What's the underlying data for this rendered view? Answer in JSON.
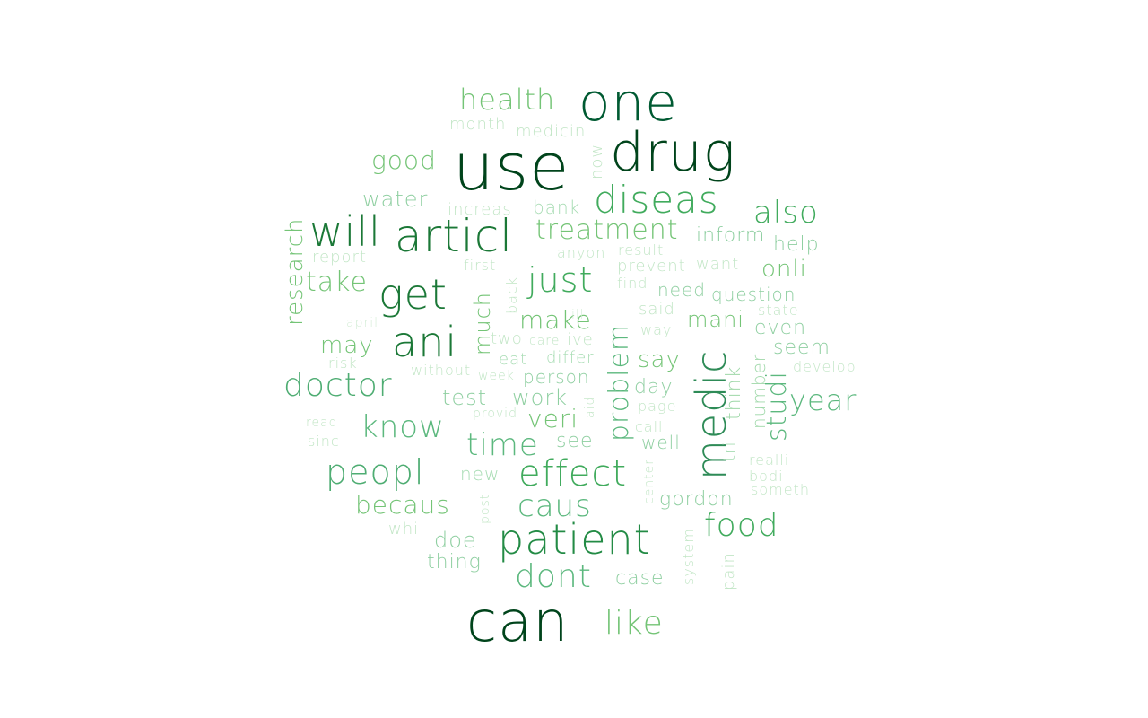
{
  "words": [
    {
      "text": "use",
      "color": "#00441b"
    },
    {
      "text": "can",
      "color": "#00441b"
    },
    {
      "text": "drug",
      "color": "#00441b"
    },
    {
      "text": "one",
      "color": "#005a32"
    },
    {
      "text": "articl",
      "color": "#1b7837"
    },
    {
      "text": "will",
      "color": "#1b7837"
    },
    {
      "text": "get",
      "color": "#1b7837"
    },
    {
      "text": "ani",
      "color": "#1b7837"
    },
    {
      "text": "medic",
      "color": "#2e8b57"
    },
    {
      "text": "patient",
      "color": "#238b45"
    },
    {
      "text": "diseas",
      "color": "#41ab5d"
    },
    {
      "text": "just",
      "color": "#41ab5d"
    },
    {
      "text": "also",
      "color": "#41ab5d"
    },
    {
      "text": "effect",
      "color": "#41ab5d"
    },
    {
      "text": "food",
      "color": "#41ab5d"
    },
    {
      "text": "doctor",
      "color": "#4fad73"
    },
    {
      "text": "peopl",
      "color": "#4fad73"
    },
    {
      "text": "dont",
      "color": "#5cb87e"
    },
    {
      "text": "caus",
      "color": "#5cb87e"
    },
    {
      "text": "know",
      "color": "#5cb87e"
    },
    {
      "text": "time",
      "color": "#5cb87e"
    },
    {
      "text": "problem",
      "color": "#5cb87e"
    },
    {
      "text": "year",
      "color": "#5cb87e"
    },
    {
      "text": "studi",
      "color": "#5cb87e"
    },
    {
      "text": "health",
      "color": "#74c476"
    },
    {
      "text": "treatment",
      "color": "#74c476"
    },
    {
      "text": "like",
      "color": "#74c476"
    },
    {
      "text": "take",
      "color": "#74c476"
    },
    {
      "text": "make",
      "color": "#74c476"
    },
    {
      "text": "good",
      "color": "#74c476"
    },
    {
      "text": "becaus",
      "color": "#74c476"
    },
    {
      "text": "research",
      "color": "#74c476"
    },
    {
      "text": "much",
      "color": "#74c476"
    },
    {
      "text": "onli",
      "color": "#74c476"
    },
    {
      "text": "veri",
      "color": "#74c476"
    },
    {
      "text": "may",
      "color": "#74c476"
    },
    {
      "text": "mani",
      "color": "#74c476"
    },
    {
      "text": "say",
      "color": "#74c476"
    },
    {
      "text": "think",
      "color": "#9fd8a9"
    },
    {
      "text": "number",
      "color": "#9fd8a9"
    },
    {
      "text": "water",
      "color": "#8fcfa1"
    },
    {
      "text": "work",
      "color": "#8fcfa1"
    },
    {
      "text": "doe",
      "color": "#8fcfa1"
    },
    {
      "text": "test",
      "color": "#8fcfa1"
    },
    {
      "text": "see",
      "color": "#8fcfa1"
    },
    {
      "text": "inform",
      "color": "#8fcfa1"
    },
    {
      "text": "help",
      "color": "#8fcfa1"
    },
    {
      "text": "thing",
      "color": "#8fcfa1"
    },
    {
      "text": "case",
      "color": "#8fcfa1"
    },
    {
      "text": "day",
      "color": "#8fcfa1"
    },
    {
      "text": "person",
      "color": "#8fcfa1"
    },
    {
      "text": "even",
      "color": "#8fcfa1"
    },
    {
      "text": "seem",
      "color": "#8fcfa1"
    },
    {
      "text": "question",
      "color": "#8fcfa1"
    },
    {
      "text": "need",
      "color": "#8fcfa1"
    },
    {
      "text": "well",
      "color": "#8fcfa1"
    },
    {
      "text": "gordon",
      "color": "#8fcfa1"
    },
    {
      "text": "new",
      "color": "#a7dcb3"
    },
    {
      "text": "tri",
      "color": "#a7dcb3"
    },
    {
      "text": "differ",
      "color": "#a7dcb3"
    },
    {
      "text": "eat",
      "color": "#a7dcb3"
    },
    {
      "text": "month",
      "color": "#c2e6c6"
    },
    {
      "text": "medicin",
      "color": "#c2e6c6"
    },
    {
      "text": "now",
      "color": "#c2e6c6"
    },
    {
      "text": "increas",
      "color": "#c2e6c6"
    },
    {
      "text": "bank",
      "color": "#a7dcb3"
    },
    {
      "text": "report",
      "color": "#c2e6c6"
    },
    {
      "text": "first",
      "color": "#c2e6c6"
    },
    {
      "text": "anyon",
      "color": "#c2e6c6"
    },
    {
      "text": "result",
      "color": "#c2e6c6"
    },
    {
      "text": "prevent",
      "color": "#c2e6c6"
    },
    {
      "text": "want",
      "color": "#c2e6c6"
    },
    {
      "text": "find",
      "color": "#c2e6c6"
    },
    {
      "text": "back",
      "color": "#c2e6c6"
    },
    {
      "text": "ill",
      "color": "#d4edd6"
    },
    {
      "text": "said",
      "color": "#c2e6c6"
    },
    {
      "text": "state",
      "color": "#c2e6c6"
    },
    {
      "text": "april",
      "color": "#d4edd6"
    },
    {
      "text": "two",
      "color": "#c2e6c6"
    },
    {
      "text": "care",
      "color": "#c2e6c6"
    },
    {
      "text": "ive",
      "color": "#c2e6c6"
    },
    {
      "text": "way",
      "color": "#c2e6c6"
    },
    {
      "text": "risk",
      "color": "#c2e6c6"
    },
    {
      "text": "without",
      "color": "#c2e6c6"
    },
    {
      "text": "week",
      "color": "#c2e6c6"
    },
    {
      "text": "develop",
      "color": "#c2e6c6"
    },
    {
      "text": "read",
      "color": "#c2e6c6"
    },
    {
      "text": "provid",
      "color": "#c2e6c6"
    },
    {
      "text": "aid",
      "color": "#c2e6c6"
    },
    {
      "text": "page",
      "color": "#c2e6c6"
    },
    {
      "text": "call",
      "color": "#c2e6c6"
    },
    {
      "text": "sinc",
      "color": "#c2e6c6"
    },
    {
      "text": "realli",
      "color": "#c2e6c6"
    },
    {
      "text": "bodi",
      "color": "#c2e6c6"
    },
    {
      "text": "someth",
      "color": "#c2e6c6"
    },
    {
      "text": "center",
      "color": "#c2e6c6"
    },
    {
      "text": "post",
      "color": "#c2e6c6"
    },
    {
      "text": "whi",
      "color": "#c2e6c6"
    },
    {
      "text": "system",
      "color": "#c2e6c6"
    },
    {
      "text": "pain",
      "color": "#c2e6c6"
    }
  ]
}
